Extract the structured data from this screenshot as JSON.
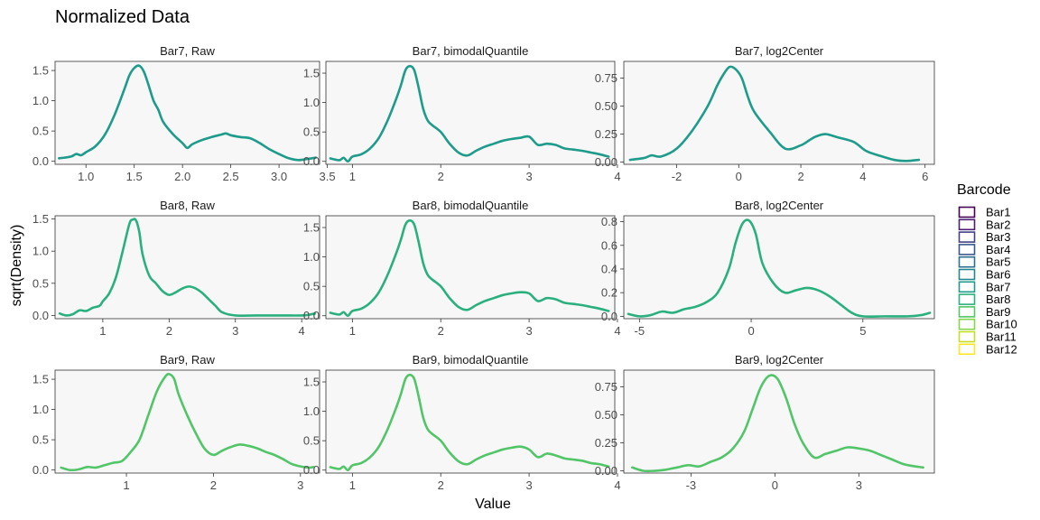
{
  "chart_data": {
    "type": "line",
    "title": "Normalized Data",
    "xlabel": "Value",
    "ylabel": "sqrt(Density)",
    "grid": false,
    "legend_placement": "right",
    "legend": {
      "title": "Barcode",
      "items": [
        {
          "label": "Bar1",
          "color": "#440154"
        },
        {
          "label": "Bar2",
          "color": "#482173"
        },
        {
          "label": "Bar3",
          "color": "#433e85"
        },
        {
          "label": "Bar4",
          "color": "#38588c"
        },
        {
          "label": "Bar5",
          "color": "#2d708e"
        },
        {
          "label": "Bar6",
          "color": "#25858e"
        },
        {
          "label": "Bar7",
          "color": "#1e9b8a"
        },
        {
          "label": "Bar8",
          "color": "#2ab07f"
        },
        {
          "label": "Bar9",
          "color": "#52c569"
        },
        {
          "label": "Bar10",
          "color": "#86d549"
        },
        {
          "label": "Bar11",
          "color": "#c2df23"
        },
        {
          "label": "Bar12",
          "color": "#fde725"
        }
      ]
    },
    "panels": [
      {
        "strip": "Bar7, Raw",
        "color": "#1e9b8a",
        "xlim": [
          0.68,
          3.42
        ],
        "ylim": [
          -0.05,
          1.65
        ],
        "xticks": [
          1.0,
          1.5,
          2.0,
          2.5,
          3.0,
          3.5
        ],
        "xtick_labels": [
          "1.0",
          "1.5",
          "2.0",
          "2.5",
          "3.0",
          "3.5"
        ],
        "yticks": [
          0.0,
          0.5,
          1.0,
          1.5
        ],
        "ytick_labels": [
          "0.0",
          "0.5",
          "1.0",
          "1.5"
        ],
        "series": [
          {
            "name": "Bar7",
            "x": [
              0.72,
              0.78,
              0.85,
              0.9,
              0.95,
              1.0,
              1.1,
              1.2,
              1.3,
              1.4,
              1.45,
              1.5,
              1.55,
              1.6,
              1.65,
              1.7,
              1.75,
              1.8,
              1.9,
              2.0,
              2.05,
              2.1,
              2.2,
              2.3,
              2.4,
              2.45,
              2.5,
              2.6,
              2.7,
              2.8,
              2.9,
              3.0,
              3.1,
              3.2,
              3.3,
              3.38
            ],
            "y": [
              0.05,
              0.06,
              0.08,
              0.12,
              0.1,
              0.15,
              0.25,
              0.45,
              0.78,
              1.2,
              1.42,
              1.54,
              1.58,
              1.48,
              1.25,
              1.0,
              0.85,
              0.65,
              0.45,
              0.3,
              0.22,
              0.28,
              0.35,
              0.4,
              0.44,
              0.46,
              0.43,
              0.4,
              0.38,
              0.3,
              0.2,
              0.12,
              0.05,
              0.02,
              0.04,
              0.06
            ]
          }
        ]
      },
      {
        "strip": "Bar7, bimodalQuantile",
        "color": "#1e9b8a",
        "xlim": [
          0.7,
          3.97
        ],
        "ylim": [
          -0.05,
          1.7
        ],
        "xticks": [
          1,
          2,
          3,
          4
        ],
        "xtick_labels": [
          "1",
          "2",
          "3",
          "4"
        ],
        "yticks": [
          0.0,
          0.5,
          1.0,
          1.5
        ],
        "ytick_labels": [
          "0.0",
          "0.5",
          "1.0",
          "1.5"
        ],
        "series": [
          {
            "name": "Bar7",
            "x": [
              0.75,
              0.85,
              0.9,
              0.95,
              1.0,
              1.1,
              1.2,
              1.3,
              1.4,
              1.5,
              1.55,
              1.6,
              1.65,
              1.7,
              1.75,
              1.8,
              1.85,
              1.9,
              2.0,
              2.1,
              2.2,
              2.3,
              2.4,
              2.5,
              2.6,
              2.7,
              2.8,
              2.9,
              3.0,
              3.1,
              3.2,
              3.3,
              3.4,
              3.5,
              3.6,
              3.7,
              3.8,
              3.9
            ],
            "y": [
              0.05,
              0.02,
              0.06,
              0.0,
              0.08,
              0.12,
              0.22,
              0.4,
              0.7,
              1.08,
              1.3,
              1.55,
              1.62,
              1.55,
              1.25,
              0.9,
              0.7,
              0.62,
              0.5,
              0.3,
              0.15,
              0.1,
              0.18,
              0.25,
              0.3,
              0.35,
              0.38,
              0.4,
              0.42,
              0.28,
              0.3,
              0.28,
              0.22,
              0.2,
              0.18,
              0.15,
              0.12,
              0.08
            ]
          }
        ]
      },
      {
        "strip": "Bar7, log2Center",
        "color": "#1e9b8a",
        "xlim": [
          -3.7,
          6.3
        ],
        "ylim": [
          -0.02,
          0.9
        ],
        "xticks": [
          -2,
          0,
          2,
          4,
          6
        ],
        "xtick_labels": [
          "-2",
          "0",
          "2",
          "4",
          "6"
        ],
        "yticks": [
          0.0,
          0.25,
          0.5,
          0.75
        ],
        "ytick_labels": [
          "0.00",
          "0.25",
          "0.50",
          "0.75"
        ],
        "series": [
          {
            "name": "Bar7",
            "x": [
              -3.5,
              -3.2,
              -3.0,
              -2.8,
              -2.5,
              -2.0,
              -1.5,
              -1.0,
              -0.7,
              -0.5,
              -0.3,
              -0.1,
              0.1,
              0.3,
              0.5,
              1.0,
              1.5,
              2.0,
              2.3,
              2.5,
              2.8,
              3.2,
              3.7,
              4.1,
              4.5,
              5.0,
              5.4,
              5.8
            ],
            "y": [
              0.02,
              0.03,
              0.04,
              0.06,
              0.05,
              0.12,
              0.28,
              0.5,
              0.68,
              0.78,
              0.85,
              0.83,
              0.75,
              0.58,
              0.45,
              0.27,
              0.12,
              0.15,
              0.2,
              0.23,
              0.25,
              0.22,
              0.18,
              0.1,
              0.06,
              0.02,
              0.01,
              0.02
            ]
          }
        ]
      },
      {
        "strip": "Bar8, Raw",
        "color": "#2ab07f",
        "xlim": [
          0.28,
          4.27
        ],
        "ylim": [
          -0.05,
          1.55
        ],
        "xticks": [
          1,
          2,
          3,
          4
        ],
        "xtick_labels": [
          "1",
          "2",
          "3",
          "4"
        ],
        "yticks": [
          0.0,
          0.5,
          1.0,
          1.5
        ],
        "ytick_labels": [
          "0.0",
          "0.5",
          "1.0",
          "1.5"
        ],
        "series": [
          {
            "name": "Bar8",
            "x": [
              0.35,
              0.45,
              0.55,
              0.65,
              0.75,
              0.85,
              0.95,
              1.0,
              1.1,
              1.2,
              1.3,
              1.4,
              1.45,
              1.5,
              1.55,
              1.6,
              1.7,
              1.8,
              1.9,
              2.0,
              2.1,
              2.2,
              2.3,
              2.4,
              2.5,
              2.6,
              2.7,
              2.8,
              3.0,
              3.3,
              3.7,
              4.0,
              4.1,
              4.2
            ],
            "y": [
              0.03,
              0.0,
              0.02,
              0.08,
              0.07,
              0.12,
              0.15,
              0.22,
              0.35,
              0.6,
              1.0,
              1.42,
              1.49,
              1.48,
              1.3,
              0.95,
              0.62,
              0.5,
              0.38,
              0.32,
              0.36,
              0.42,
              0.45,
              0.42,
              0.35,
              0.25,
              0.15,
              0.05,
              0.0,
              0.0,
              0.0,
              0.0,
              0.01,
              0.03
            ]
          }
        ]
      },
      {
        "strip": "Bar8, bimodalQuantile",
        "color": "#2ab07f",
        "xlim": [
          0.7,
          3.97
        ],
        "ylim": [
          -0.05,
          1.7
        ],
        "xticks": [
          1,
          2,
          3,
          4
        ],
        "xtick_labels": [
          "1",
          "2",
          "3",
          "4"
        ],
        "yticks": [
          0.0,
          0.5,
          1.0,
          1.5
        ],
        "ytick_labels": [
          "0.0",
          "0.5",
          "1.0",
          "1.5"
        ],
        "series": [
          {
            "name": "Bar8",
            "x": [
              0.75,
              0.85,
              0.9,
              0.95,
              1.0,
              1.1,
              1.2,
              1.3,
              1.4,
              1.5,
              1.55,
              1.6,
              1.65,
              1.7,
              1.75,
              1.8,
              1.85,
              1.9,
              2.0,
              2.1,
              2.2,
              2.3,
              2.4,
              2.5,
              2.6,
              2.7,
              2.8,
              2.9,
              3.0,
              3.1,
              3.2,
              3.3,
              3.4,
              3.5,
              3.6,
              3.7,
              3.8,
              3.9
            ],
            "y": [
              0.05,
              0.02,
              0.06,
              0.0,
              0.08,
              0.12,
              0.22,
              0.4,
              0.7,
              1.08,
              1.3,
              1.55,
              1.62,
              1.55,
              1.25,
              0.9,
              0.7,
              0.62,
              0.5,
              0.3,
              0.15,
              0.1,
              0.18,
              0.25,
              0.3,
              0.35,
              0.38,
              0.4,
              0.38,
              0.25,
              0.3,
              0.28,
              0.22,
              0.2,
              0.18,
              0.15,
              0.12,
              0.08
            ]
          }
        ]
      },
      {
        "strip": "Bar8, log2Center",
        "color": "#2ab07f",
        "xlim": [
          -5.7,
          8.2
        ],
        "ylim": [
          -0.02,
          0.85
        ],
        "xticks": [
          -5,
          0,
          5
        ],
        "xtick_labels": [
          "-5",
          "0",
          "5"
        ],
        "yticks": [
          0.0,
          0.2,
          0.4,
          0.6,
          0.8
        ],
        "ytick_labels": [
          "0.0",
          "0.2",
          "0.4",
          "0.6",
          "0.8"
        ],
        "series": [
          {
            "name": "Bar8",
            "x": [
              -5.5,
              -5.0,
              -4.5,
              -4.0,
              -3.5,
              -3.0,
              -2.5,
              -2.0,
              -1.5,
              -1.0,
              -0.7,
              -0.4,
              -0.1,
              0.2,
              0.5,
              1.0,
              1.5,
              2.0,
              2.5,
              3.0,
              3.5,
              4.0,
              4.5,
              5.0,
              6.0,
              7.0,
              7.6,
              8.0
            ],
            "y": [
              0.02,
              0.0,
              0.01,
              0.04,
              0.03,
              0.06,
              0.08,
              0.12,
              0.2,
              0.4,
              0.62,
              0.78,
              0.81,
              0.7,
              0.45,
              0.28,
              0.2,
              0.22,
              0.24,
              0.22,
              0.17,
              0.1,
              0.03,
              0.0,
              0.0,
              0.0,
              0.01,
              0.03
            ]
          }
        ]
      },
      {
        "strip": "Bar9, Raw",
        "color": "#52c569",
        "xlim": [
          0.18,
          3.22
        ],
        "ylim": [
          -0.05,
          1.65
        ],
        "xticks": [
          1,
          2,
          3
        ],
        "xtick_labels": [
          "1",
          "2",
          "3"
        ],
        "yticks": [
          0.0,
          0.5,
          1.0,
          1.5
        ],
        "ytick_labels": [
          "0.0",
          "0.5",
          "1.0",
          "1.5"
        ],
        "series": [
          {
            "name": "Bar9",
            "x": [
              0.25,
              0.35,
              0.45,
              0.55,
              0.65,
              0.75,
              0.85,
              0.95,
              1.05,
              1.15,
              1.25,
              1.35,
              1.45,
              1.5,
              1.55,
              1.6,
              1.7,
              1.8,
              1.9,
              2.0,
              2.1,
              2.2,
              2.3,
              2.4,
              2.5,
              2.6,
              2.7,
              2.8,
              2.9,
              3.0,
              3.1,
              3.15
            ],
            "y": [
              0.04,
              0.0,
              0.01,
              0.05,
              0.04,
              0.08,
              0.12,
              0.15,
              0.3,
              0.5,
              0.9,
              1.3,
              1.55,
              1.58,
              1.5,
              1.25,
              0.9,
              0.6,
              0.35,
              0.25,
              0.32,
              0.38,
              0.42,
              0.4,
              0.36,
              0.3,
              0.25,
              0.18,
              0.1,
              0.06,
              0.04,
              0.05
            ]
          }
        ]
      },
      {
        "strip": "Bar9, bimodalQuantile",
        "color": "#52c569",
        "xlim": [
          0.7,
          3.97
        ],
        "ylim": [
          -0.05,
          1.7
        ],
        "xticks": [
          1,
          2,
          3,
          4
        ],
        "xtick_labels": [
          "1",
          "2",
          "3",
          "4"
        ],
        "yticks": [
          0.0,
          0.5,
          1.0,
          1.5
        ],
        "ytick_labels": [
          "0.0",
          "0.5",
          "1.0",
          "1.5"
        ],
        "series": [
          {
            "name": "Bar9",
            "x": [
              0.75,
              0.85,
              0.9,
              0.95,
              1.0,
              1.1,
              1.2,
              1.3,
              1.4,
              1.5,
              1.55,
              1.6,
              1.65,
              1.7,
              1.75,
              1.8,
              1.85,
              1.9,
              2.0,
              2.1,
              2.2,
              2.3,
              2.4,
              2.5,
              2.6,
              2.7,
              2.8,
              2.9,
              3.0,
              3.1,
              3.2,
              3.3,
              3.4,
              3.5,
              3.6,
              3.7,
              3.8,
              3.9
            ],
            "y": [
              0.05,
              0.02,
              0.06,
              0.0,
              0.08,
              0.12,
              0.22,
              0.4,
              0.7,
              1.08,
              1.3,
              1.55,
              1.62,
              1.55,
              1.25,
              0.9,
              0.7,
              0.62,
              0.5,
              0.3,
              0.15,
              0.1,
              0.18,
              0.25,
              0.3,
              0.35,
              0.38,
              0.4,
              0.35,
              0.22,
              0.28,
              0.25,
              0.2,
              0.18,
              0.16,
              0.12,
              0.1,
              0.06
            ]
          }
        ]
      },
      {
        "strip": "Bar9, log2Center",
        "color": "#52c569",
        "xlim": [
          -5.4,
          5.7
        ],
        "ylim": [
          -0.02,
          0.9
        ],
        "xticks": [
          -3,
          0,
          3
        ],
        "xtick_labels": [
          "-3",
          "0",
          "3"
        ],
        "yticks": [
          0.0,
          0.25,
          0.5,
          0.75
        ],
        "ytick_labels": [
          "0.00",
          "0.25",
          "0.50",
          "0.75"
        ],
        "series": [
          {
            "name": "Bar9",
            "x": [
              -5.1,
              -4.7,
              -4.3,
              -3.9,
              -3.5,
              -3.1,
              -2.7,
              -2.3,
              -1.9,
              -1.5,
              -1.1,
              -0.8,
              -0.5,
              -0.2,
              0.1,
              0.4,
              0.7,
              1.0,
              1.4,
              1.8,
              2.2,
              2.6,
              3.0,
              3.4,
              3.8,
              4.2,
              4.6,
              5.0,
              5.3
            ],
            "y": [
              0.03,
              0.0,
              0.0,
              0.01,
              0.03,
              0.05,
              0.04,
              0.08,
              0.12,
              0.2,
              0.35,
              0.55,
              0.75,
              0.85,
              0.82,
              0.65,
              0.42,
              0.25,
              0.12,
              0.15,
              0.18,
              0.21,
              0.2,
              0.18,
              0.14,
              0.1,
              0.06,
              0.04,
              0.03
            ]
          }
        ]
      }
    ]
  }
}
